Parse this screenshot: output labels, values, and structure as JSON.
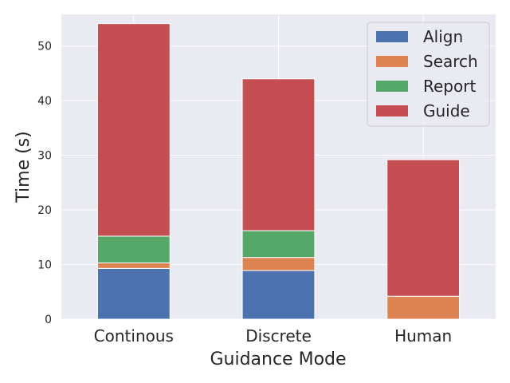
{
  "chart_data": {
    "type": "bar",
    "stacked": true,
    "title": "",
    "xlabel": "Guidance Mode",
    "ylabel": "Time (s)",
    "categories": [
      "Continous",
      "Discrete",
      "Human"
    ],
    "ylim": [
      0,
      55.8
    ],
    "yticks": [
      0,
      10,
      20,
      30,
      40,
      50
    ],
    "grid": true,
    "legend_position": "top-right",
    "series": [
      {
        "name": "Align",
        "color": "#4c72b0",
        "values": [
          9.3,
          8.9,
          0
        ]
      },
      {
        "name": "Search",
        "color": "#dd8452",
        "values": [
          1.0,
          2.4,
          4.2
        ]
      },
      {
        "name": "Report",
        "color": "#55a868",
        "values": [
          4.9,
          4.9,
          0
        ]
      },
      {
        "name": "Guide",
        "color": "#c44e52",
        "values": [
          38.9,
          27.8,
          25.0
        ]
      }
    ]
  },
  "colors": {
    "plot_background": "#eaeaf2",
    "grid": "#ffffff",
    "text": "#262626"
  }
}
